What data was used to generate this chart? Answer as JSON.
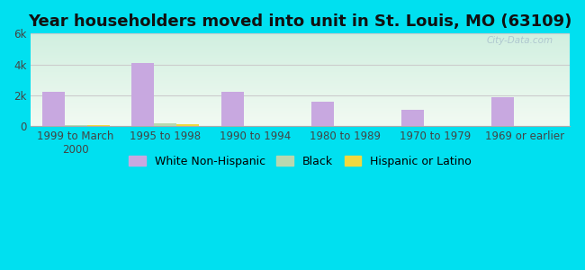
{
  "title": "Year householders moved into unit in St. Louis, MO (63109)",
  "categories": [
    "1999 to March\n2000",
    "1995 to 1998",
    "1990 to 1994",
    "1980 to 1989",
    "1970 to 1979",
    "1969 or earlier"
  ],
  "white_non_hispanic": [
    2200,
    4100,
    2200,
    1600,
    1050,
    1900
  ],
  "black": [
    90,
    200,
    20,
    20,
    15,
    15
  ],
  "hispanic_or_latino": [
    70,
    130,
    10,
    10,
    10,
    10
  ],
  "bar_width": 0.25,
  "ylim": [
    0,
    6000
  ],
  "yticks": [
    0,
    2000,
    4000,
    6000
  ],
  "ytick_labels": [
    "0",
    "2k",
    "4k",
    "6k"
  ],
  "white_color": "#c8a8e0",
  "black_color": "#b8d8b0",
  "hispanic_color": "#f0d840",
  "bg_outer": "#00e0f0",
  "grid_color": "#cccccc",
  "title_fontsize": 13,
  "axis_fontsize": 8.5,
  "legend_fontsize": 9,
  "watermark": "City-Data.com"
}
